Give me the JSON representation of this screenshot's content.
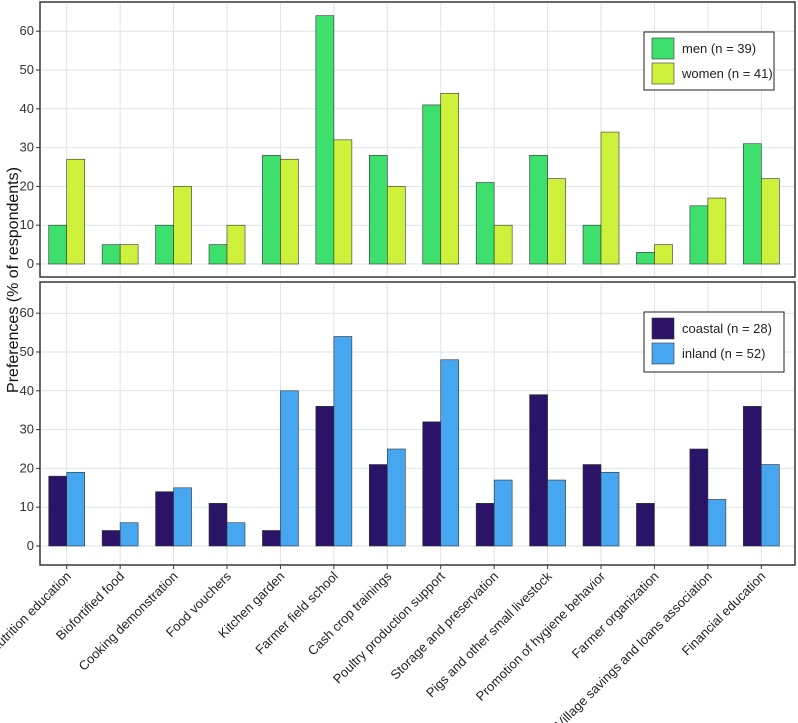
{
  "chart_data": [
    {
      "type": "bar",
      "title": "",
      "xlabel": "",
      "ylabel": "Preferences (% of respondents)",
      "ylim": [
        0,
        65
      ],
      "yticks": [
        0,
        10,
        20,
        30,
        40,
        50,
        60
      ],
      "grid": true,
      "legend": "top-right",
      "categories": [
        "Nutrition education",
        "Biofortified food",
        "Cooking demonstration",
        "Food vouchers",
        "Kitchen garden",
        "Farmer field school",
        "Cash crop trainings",
        "Poultry production support",
        "Storage and preservation",
        "Pigs and other small livestock",
        "Promotion of hygiene behavior",
        "Farmer organization",
        "Village savings and loans association",
        "Financial education"
      ],
      "series": [
        {
          "name": "men (n = 39)",
          "color": "#3de06d",
          "values": [
            10,
            5,
            10,
            5,
            28,
            64,
            28,
            41,
            21,
            28,
            10,
            3,
            15,
            31
          ]
        },
        {
          "name": "women (n = 41)",
          "color": "#cef23b",
          "values": [
            27,
            5,
            20,
            10,
            27,
            32,
            20,
            44,
            10,
            22,
            34,
            5,
            17,
            22
          ]
        }
      ]
    },
    {
      "type": "bar",
      "title": "",
      "xlabel": "",
      "ylabel": "Preferences (% of respondents)",
      "ylim": [
        0,
        65
      ],
      "yticks": [
        0,
        10,
        20,
        30,
        40,
        50,
        60
      ],
      "grid": true,
      "legend": "top-right",
      "categories": [
        "Nutrition education",
        "Biofortified food",
        "Cooking demonstration",
        "Food vouchers",
        "Kitchen garden",
        "Farmer field school",
        "Cash crop trainings",
        "Poultry production support",
        "Storage and preservation",
        "Pigs and other small livestock",
        "Promotion of hygiene behavior",
        "Farmer organization",
        "Village savings and loans association",
        "Financial education"
      ],
      "series": [
        {
          "name": "coastal (n = 28)",
          "color": "#2b1468",
          "values": [
            18,
            4,
            14,
            11,
            4,
            36,
            21,
            32,
            11,
            39,
            21,
            11,
            25,
            36
          ]
        },
        {
          "name": "inland (n = 52)",
          "color": "#46a6f0",
          "values": [
            19,
            6,
            15,
            6,
            40,
            54,
            25,
            48,
            17,
            17,
            19,
            0,
            12,
            21
          ]
        }
      ]
    }
  ]
}
